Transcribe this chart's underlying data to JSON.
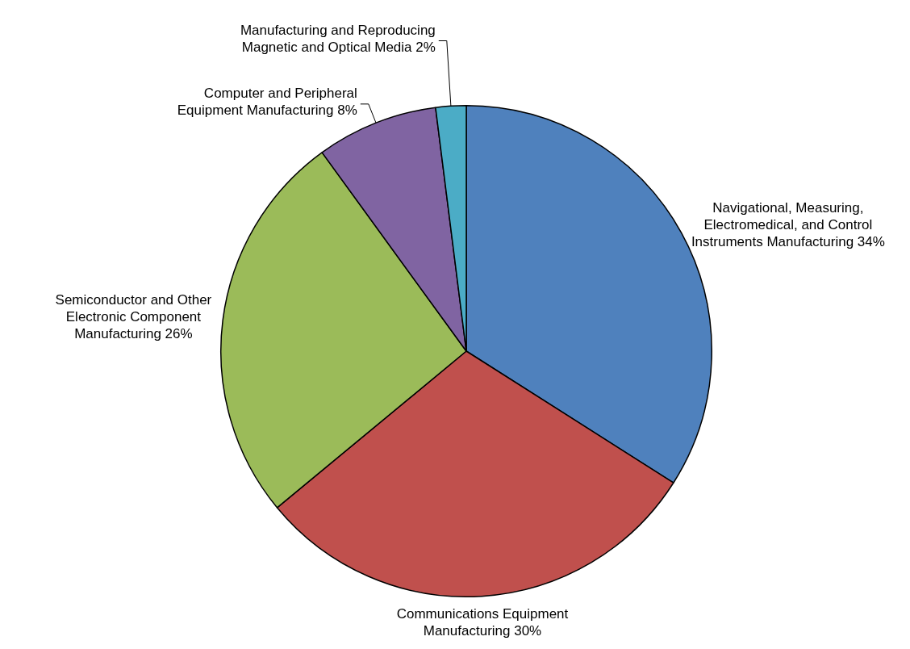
{
  "chart_data": {
    "type": "pie",
    "categories": [
      "Navigational, Measuring, Electromedical, and Control Instruments Manufacturing",
      "Communications Equipment Manufacturing",
      "Semiconductor and Other Electronic Component Manufacturing",
      "Computer and Peripheral Equipment Manufacturing",
      "Manufacturing and Reproducing Magnetic and Optical Media"
    ],
    "values": [
      34,
      30,
      26,
      8,
      2
    ],
    "colors": [
      "#4f81bd",
      "#c0504d",
      "#9bbb59",
      "#8064a2",
      "#4bacc6"
    ],
    "value_labels": [
      "34%",
      "30%",
      "26%",
      "8%",
      "2%"
    ],
    "legend": false
  }
}
